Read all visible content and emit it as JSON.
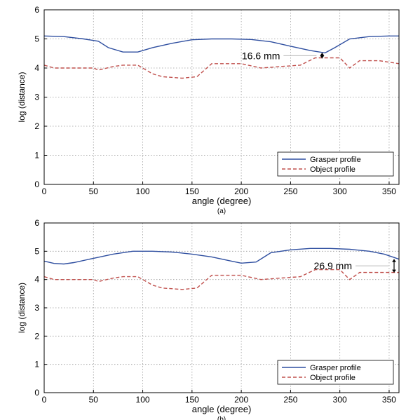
{
  "colors": {
    "grasper": "#2f4fa0",
    "object": "#c0504d",
    "grid": "#9a9a9a",
    "annotation": "#000000"
  },
  "chart_data": [
    {
      "type": "line",
      "caption": "(a)",
      "xlabel": "angle (degree)",
      "ylabel": "log (distance)",
      "xlim": [
        0,
        360
      ],
      "ylim": [
        0,
        6
      ],
      "x_ticks": [
        "0",
        "50",
        "100",
        "150",
        "200",
        "250",
        "300",
        "350"
      ],
      "y_ticks": [
        "0",
        "1",
        "2",
        "3",
        "4",
        "5",
        "6"
      ],
      "grid": true,
      "legend_position": "bottom-right",
      "annotation": {
        "text": "16.6 mm",
        "x": 282,
        "y_top": 4.52,
        "y_bottom": 4.33
      },
      "series": [
        {
          "name": "Grasper profile",
          "style": "solid",
          "x": [
            0,
            20,
            40,
            55,
            65,
            80,
            95,
            110,
            130,
            150,
            170,
            190,
            210,
            230,
            250,
            270,
            285,
            295,
            310,
            330,
            350,
            360
          ],
          "y": [
            5.1,
            5.08,
            5.0,
            4.92,
            4.7,
            4.55,
            4.55,
            4.7,
            4.85,
            4.97,
            5.0,
            5.0,
            4.98,
            4.9,
            4.75,
            4.6,
            4.52,
            4.7,
            5.0,
            5.08,
            5.1,
            5.1
          ]
        },
        {
          "name": "Object profile",
          "style": "dashed",
          "x": [
            0,
            10,
            30,
            50,
            55,
            70,
            80,
            95,
            110,
            120,
            140,
            155,
            170,
            200,
            220,
            240,
            260,
            275,
            300,
            310,
            320,
            340,
            360
          ],
          "y": [
            4.1,
            4.0,
            4.0,
            4.0,
            3.93,
            4.05,
            4.1,
            4.1,
            3.8,
            3.7,
            3.65,
            3.7,
            4.15,
            4.15,
            4.0,
            4.05,
            4.1,
            4.35,
            4.35,
            4.0,
            4.25,
            4.25,
            4.15
          ]
        }
      ]
    },
    {
      "type": "line",
      "caption": "(b)",
      "xlabel": "angle (degree)",
      "ylabel": "log (distance)",
      "xlim": [
        0,
        360
      ],
      "ylim": [
        0,
        6
      ],
      "x_ticks": [
        "0",
        "50",
        "100",
        "150",
        "200",
        "250",
        "300",
        "350"
      ],
      "y_ticks": [
        "0",
        "1",
        "2",
        "3",
        "4",
        "5",
        "6"
      ],
      "grid": true,
      "legend_position": "bottom-right",
      "annotation": {
        "text": "26.9 mm",
        "x": 360,
        "y_top": 4.72,
        "y_bottom": 4.25
      },
      "series": [
        {
          "name": "Grasper profile",
          "style": "solid",
          "x": [
            0,
            10,
            20,
            30,
            50,
            70,
            90,
            110,
            130,
            150,
            170,
            190,
            200,
            215,
            230,
            250,
            270,
            290,
            310,
            330,
            345,
            355,
            360
          ],
          "y": [
            4.65,
            4.57,
            4.55,
            4.6,
            4.75,
            4.9,
            5.0,
            5.0,
            4.97,
            4.9,
            4.8,
            4.65,
            4.58,
            4.62,
            4.95,
            5.05,
            5.1,
            5.1,
            5.07,
            5.0,
            4.9,
            4.78,
            4.72
          ]
        },
        {
          "name": "Object profile",
          "style": "dashed",
          "x": [
            0,
            10,
            30,
            50,
            55,
            70,
            80,
            95,
            110,
            120,
            140,
            155,
            170,
            200,
            220,
            240,
            260,
            275,
            300,
            310,
            320,
            340,
            360
          ],
          "y": [
            4.1,
            4.0,
            4.0,
            4.0,
            3.93,
            4.05,
            4.1,
            4.1,
            3.8,
            3.7,
            3.65,
            3.7,
            4.15,
            4.15,
            4.0,
            4.05,
            4.1,
            4.35,
            4.35,
            4.0,
            4.25,
            4.25,
            4.25
          ]
        }
      ]
    }
  ]
}
